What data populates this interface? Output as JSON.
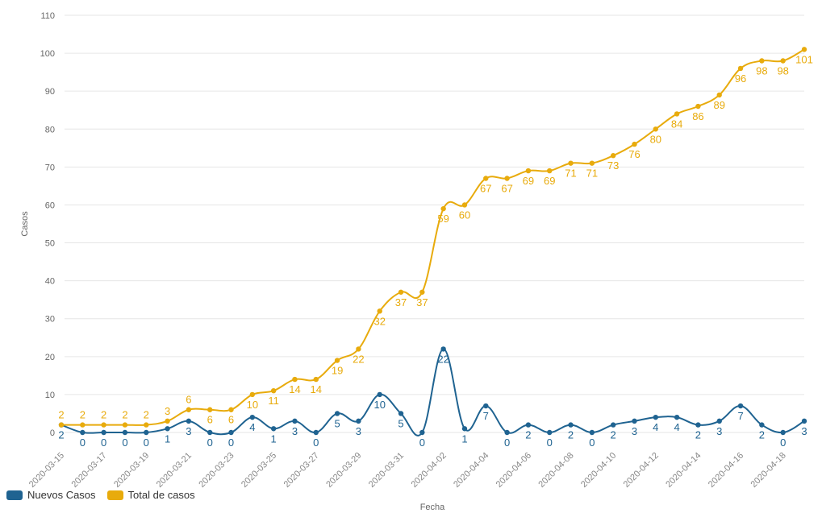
{
  "chart_data": {
    "type": "line",
    "title": "",
    "xlabel": "Fecha",
    "ylabel": "Casos",
    "ylim": [
      0,
      110
    ],
    "yticks": [
      0,
      10,
      20,
      30,
      40,
      50,
      60,
      70,
      80,
      90,
      100,
      110
    ],
    "grid": true,
    "legend_position": "bottom-left",
    "x": [
      "2020-03-15",
      "2020-03-16",
      "2020-03-17",
      "2020-03-18",
      "2020-03-19",
      "2020-03-20",
      "2020-03-21",
      "2020-03-22",
      "2020-03-23",
      "2020-03-24",
      "2020-03-25",
      "2020-03-26",
      "2020-03-27",
      "2020-03-28",
      "2020-03-29",
      "2020-03-30",
      "2020-03-31",
      "2020-04-01",
      "2020-04-02",
      "2020-04-03",
      "2020-04-04",
      "2020-04-05",
      "2020-04-06",
      "2020-04-07",
      "2020-04-08",
      "2020-04-09",
      "2020-04-10",
      "2020-04-11",
      "2020-04-12",
      "2020-04-13",
      "2020-04-14",
      "2020-04-15",
      "2020-04-16",
      "2020-04-17",
      "2020-04-18",
      "2020-04-19"
    ],
    "series": [
      {
        "name": "Nuevos Casos",
        "color": "#1f6391",
        "values": [
          2,
          0,
          0,
          0,
          0,
          1,
          3,
          0,
          0,
          4,
          1,
          3,
          0,
          5,
          3,
          10,
          5,
          0,
          22,
          1,
          7,
          0,
          2,
          0,
          2,
          0,
          2,
          3,
          4,
          4,
          2,
          3,
          7,
          2,
          0,
          3
        ]
      },
      {
        "name": "Total de casos",
        "color": "#e8ab0c",
        "values": [
          2,
          2,
          2,
          2,
          2,
          3,
          6,
          6,
          6,
          10,
          11,
          14,
          14,
          19,
          22,
          32,
          37,
          37,
          59,
          60,
          67,
          67,
          69,
          69,
          71,
          71,
          73,
          76,
          80,
          84,
          86,
          89,
          96,
          98,
          98,
          101
        ]
      }
    ]
  }
}
